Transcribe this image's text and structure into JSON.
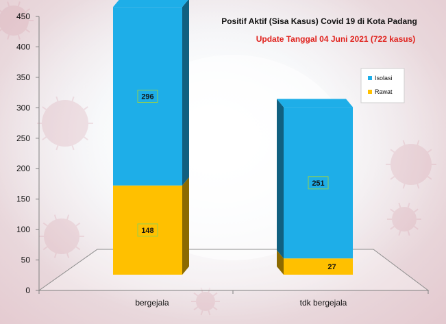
{
  "chart_data": {
    "type": "bar",
    "stacked": true,
    "three_d": true,
    "title": "Positif Aktif  (Sisa Kasus) Covid 19 di Kota Padang",
    "subtitle": "Update Tanggal  04 Juni 2021  (722 kasus)",
    "categories": [
      "bergejala",
      "tdk bergejala"
    ],
    "series": [
      {
        "name": "Rawat",
        "values": [
          148,
          27
        ],
        "color": "#FFC000"
      },
      {
        "name": "Isolasi",
        "values": [
          296,
          251
        ],
        "color": "#1EAEE8"
      }
    ],
    "legend_order": [
      "Isolasi",
      "Rawat"
    ],
    "ylim": [
      0,
      450
    ],
    "yticks": [
      0,
      50,
      100,
      150,
      200,
      250,
      300,
      350,
      400,
      450
    ],
    "xlabel": "",
    "ylabel": "",
    "grid": false,
    "legend_position": "right",
    "colors": {
      "subtitle": "#E0201B",
      "axis": "#7f7f7f",
      "label_border": "#92D050"
    }
  }
}
